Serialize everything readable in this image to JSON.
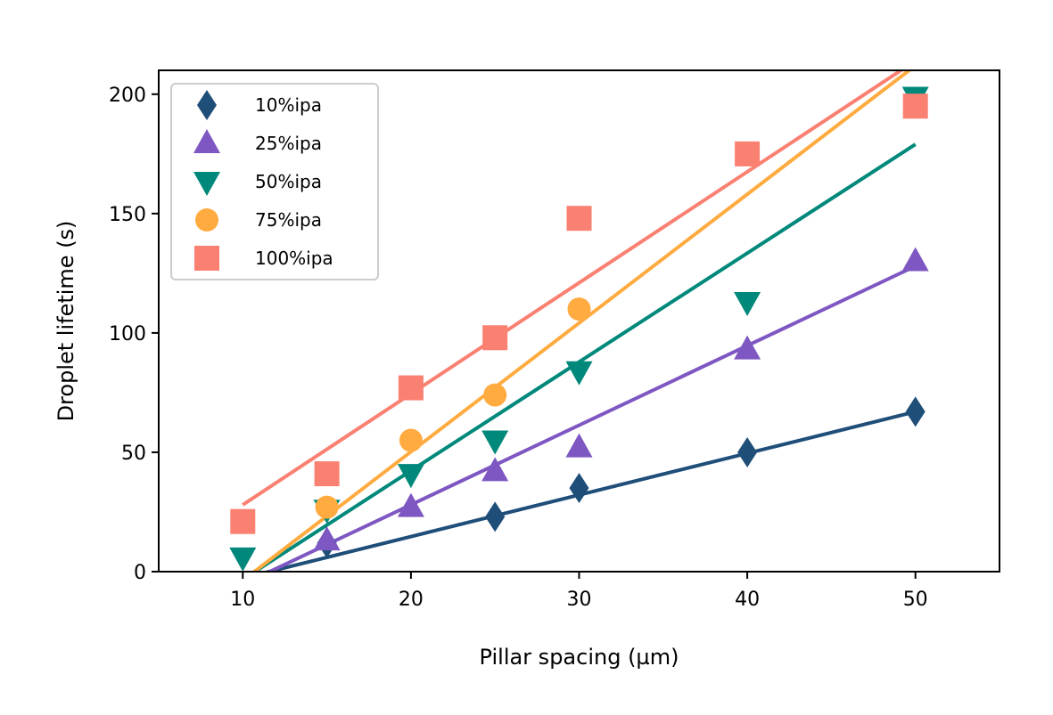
{
  "chart_data": {
    "type": "scatter",
    "xlabel": "Pillar spacing (µm)",
    "ylabel": "Droplet lifetime (s)",
    "xlim": [
      5,
      55
    ],
    "ylim": [
      0,
      210
    ],
    "xticks": [
      10,
      20,
      30,
      40,
      50
    ],
    "yticks": [
      0,
      50,
      100,
      150,
      200
    ],
    "legend_position": "upper-left",
    "series": [
      {
        "name": "10%ipa",
        "marker": "diamond",
        "color": "#1f4e79",
        "x": [
          15,
          25,
          30,
          40,
          50
        ],
        "y": [
          12,
          23,
          35,
          50,
          67
        ],
        "fit": {
          "x": [
            11,
            50
          ],
          "y": [
            -1,
            67
          ]
        }
      },
      {
        "name": "25%ipa",
        "marker": "triangle-up",
        "color": "#7e57c2",
        "x": [
          15,
          20,
          25,
          30,
          40,
          50
        ],
        "y": [
          13,
          27,
          42,
          52,
          93,
          130
        ],
        "fit": {
          "x": [
            11,
            50
          ],
          "y": [
            -2,
            128
          ]
        }
      },
      {
        "name": "50%ipa",
        "marker": "triangle-down",
        "color": "#00897b",
        "x": [
          10,
          15,
          20,
          25,
          30,
          40,
          50
        ],
        "y": [
          6,
          26,
          41,
          55,
          84,
          113,
          199
        ],
        "fit": {
          "x": [
            10.5,
            50
          ],
          "y": [
            -1,
            179
          ]
        }
      },
      {
        "name": "75%ipa",
        "marker": "circle",
        "color": "#ffab40",
        "x": [
          15,
          20,
          25,
          30
        ],
        "y": [
          27,
          55,
          74,
          110
        ],
        "fit": {
          "x": [
            10.5,
            50
          ],
          "y": [
            -1,
            212
          ]
        }
      },
      {
        "name": "100%ipa",
        "marker": "square",
        "color": "#fa8072",
        "x": [
          10,
          15,
          20,
          25,
          30,
          40,
          50
        ],
        "y": [
          21,
          41,
          77,
          98,
          148,
          175,
          195
        ],
        "fit": {
          "x": [
            10,
            50
          ],
          "y": [
            28,
            214
          ]
        }
      }
    ]
  }
}
